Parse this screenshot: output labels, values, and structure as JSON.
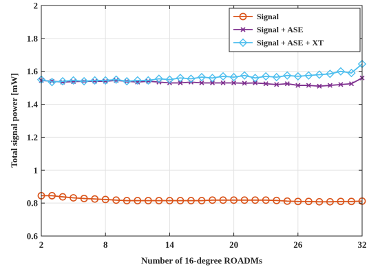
{
  "chart_data": {
    "type": "line",
    "xlabel": "Number of 16-degree ROADMs",
    "ylabel": "Total signal power [mW]",
    "xlim": [
      2,
      32
    ],
    "ylim": [
      0.6,
      2
    ],
    "xticks": [
      "2",
      "8",
      "14",
      "20",
      "26",
      "32"
    ],
    "yticks": [
      "0.6",
      "0.8",
      "1",
      "1.2",
      "1.4",
      "1.6",
      "1.8",
      "2"
    ],
    "grid": true,
    "legend_position": "top-right",
    "x": [
      2,
      3,
      4,
      5,
      6,
      7,
      8,
      9,
      10,
      11,
      12,
      13,
      14,
      15,
      16,
      17,
      18,
      19,
      20,
      21,
      22,
      23,
      24,
      25,
      26,
      27,
      28,
      29,
      30,
      31,
      32
    ],
    "series": [
      {
        "name": "Signal",
        "color": "#d95319",
        "marker": "circle",
        "values": [
          0.845,
          0.845,
          0.838,
          0.832,
          0.828,
          0.825,
          0.822,
          0.818,
          0.815,
          0.815,
          0.815,
          0.815,
          0.815,
          0.815,
          0.815,
          0.815,
          0.818,
          0.818,
          0.818,
          0.818,
          0.818,
          0.818,
          0.816,
          0.812,
          0.81,
          0.81,
          0.808,
          0.808,
          0.81,
          0.81,
          0.812
        ]
      },
      {
        "name": "Signal + ASE",
        "color": "#7e2f8e",
        "marker": "x",
        "values": [
          1.545,
          1.54,
          1.535,
          1.538,
          1.54,
          1.54,
          1.54,
          1.545,
          1.54,
          1.535,
          1.54,
          1.535,
          1.53,
          1.53,
          1.535,
          1.53,
          1.53,
          1.53,
          1.53,
          1.528,
          1.53,
          1.525,
          1.52,
          1.525,
          1.515,
          1.515,
          1.51,
          1.515,
          1.52,
          1.525,
          1.56
        ]
      },
      {
        "name": "Signal + ASE + XT",
        "color": "#4dbeee",
        "marker": "diamond",
        "values": [
          1.55,
          1.535,
          1.54,
          1.545,
          1.54,
          1.545,
          1.545,
          1.55,
          1.54,
          1.545,
          1.545,
          1.555,
          1.55,
          1.56,
          1.555,
          1.565,
          1.56,
          1.57,
          1.565,
          1.575,
          1.56,
          1.57,
          1.565,
          1.575,
          1.57,
          1.575,
          1.58,
          1.585,
          1.6,
          1.59,
          1.645
        ]
      }
    ]
  }
}
